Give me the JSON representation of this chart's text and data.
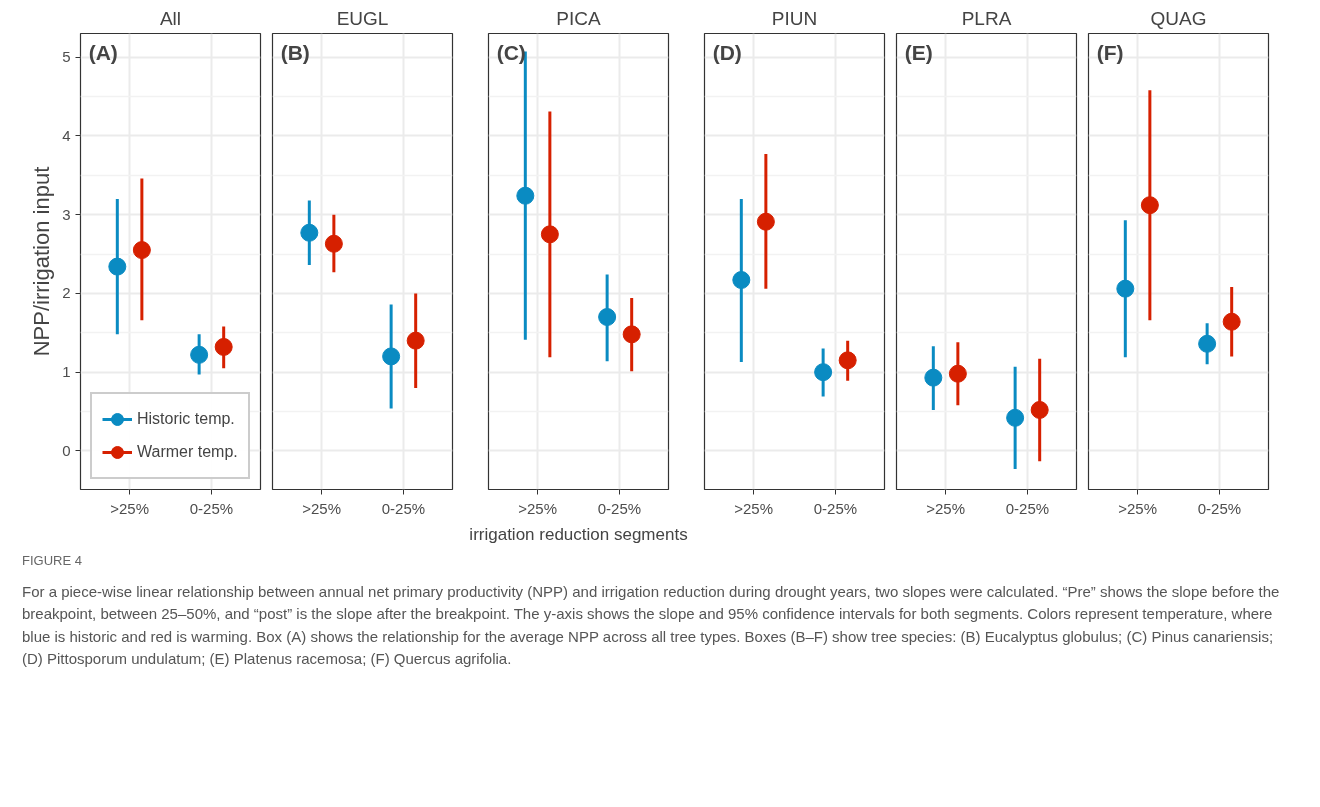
{
  "chart_data": [
    {
      "type": "scatter",
      "title": "All",
      "ylabel": "NPP/irrigation input",
      "categories": [
        ">25%",
        "0-25%"
      ],
      "ylim": [
        -0.49,
        5.3
      ],
      "yticks": [
        0,
        1,
        2,
        3,
        4,
        5
      ],
      "grid": true,
      "legend": "bottom left",
      "marker": "circle",
      "annotations": [
        "(A)",
        "FIGURE 4",
        "For a piece-wise linear relationship between annual net primary productivity (NPP) and irrigation reduction during drought years, two slopes were calculated. “Pre” shows the slope before the breakpoint, between 25–50%, and “post” is the slope after the breakpoint. The y-axis shows the slope and 95% confidence intervals for both segments. Colors represent temperature, where blue is historic and red is warming. Box (A) shows the relationship for the average NPP across all tree types. Boxes (B–F) show tree species: (B) Eucalyptus globulus; (C) Pinus canariensis; (D) Pittosporum undulatum; (E) Platenus racemosa; (F) Quercus agrifolia."
      ],
      "series": [
        {
          "name": "Historic temp.",
          "color": "#0a8bc2",
          "values": [
            2.34,
            1.22
          ],
          "errors": [
            [
              1.48,
              3.2
            ],
            [
              0.97,
              1.48
            ]
          ]
        },
        {
          "name": "Warmer temp.",
          "color": "#d62000",
          "values": [
            2.55,
            1.32
          ],
          "errors": [
            [
              1.66,
              3.46
            ],
            [
              1.05,
              1.58
            ]
          ]
        }
      ]
    },
    {
      "type": "scatter",
      "title": "EUGL",
      "categories": [
        ">25%",
        "0-25%"
      ],
      "ylim": [
        -0.49,
        5.3
      ],
      "yticks": [
        0,
        1,
        2,
        3,
        4,
        5
      ],
      "grid": true,
      "tick_labels": "x",
      "marker": "circle",
      "annotations": [
        "(B)"
      ],
      "series": [
        {
          "color": "#0a8bc2",
          "values": [
            2.77,
            1.2
          ],
          "errors": [
            [
              2.36,
              3.18
            ],
            [
              0.54,
              1.86
            ]
          ]
        },
        {
          "color": "#d62000",
          "values": [
            2.63,
            1.4
          ],
          "errors": [
            [
              2.27,
              3.0
            ],
            [
              0.8,
              2.0
            ]
          ]
        }
      ]
    },
    {
      "type": "scatter",
      "title": "PICA",
      "xlabel": "irrigation reduction segments",
      "categories": [
        ">25%",
        "0-25%"
      ],
      "ylim": [
        -0.49,
        5.3
      ],
      "yticks": [
        0,
        1,
        2,
        3,
        4,
        5
      ],
      "grid": true,
      "tick_labels": "x",
      "marker": "circle",
      "annotations": [
        "(C)"
      ],
      "series": [
        {
          "color": "#0a8bc2",
          "values": [
            3.24,
            1.7
          ],
          "errors": [
            [
              1.41,
              5.07
            ],
            [
              1.14,
              2.24
            ]
          ]
        },
        {
          "color": "#d62000",
          "values": [
            2.75,
            1.48
          ],
          "errors": [
            [
              1.19,
              4.31
            ],
            [
              1.01,
              1.94
            ]
          ]
        }
      ]
    },
    {
      "type": "scatter",
      "title": "PIUN",
      "categories": [
        ">25%",
        "0-25%"
      ],
      "ylim": [
        -0.49,
        5.3
      ],
      "yticks": [
        0,
        1,
        2,
        3,
        4,
        5
      ],
      "grid": true,
      "tick_labels": "x",
      "marker": "circle",
      "annotations": [
        "(D)"
      ],
      "series": [
        {
          "color": "#0a8bc2",
          "values": [
            2.17,
            1.0
          ],
          "errors": [
            [
              1.13,
              3.2
            ],
            [
              0.69,
              1.3
            ]
          ]
        },
        {
          "color": "#d62000",
          "values": [
            2.91,
            1.15
          ],
          "errors": [
            [
              2.06,
              3.77
            ],
            [
              0.89,
              1.4
            ]
          ]
        }
      ]
    },
    {
      "type": "scatter",
      "title": "PLRA",
      "categories": [
        ">25%",
        "0-25%"
      ],
      "ylim": [
        -0.49,
        5.3
      ],
      "yticks": [
        0,
        1,
        2,
        3,
        4,
        5
      ],
      "grid": true,
      "tick_labels": "x",
      "marker": "circle",
      "annotations": [
        "(E)"
      ],
      "series": [
        {
          "color": "#0a8bc2",
          "values": [
            0.93,
            0.42
          ],
          "errors": [
            [
              0.52,
              1.33
            ],
            [
              -0.23,
              1.07
            ]
          ]
        },
        {
          "color": "#d62000",
          "values": [
            0.98,
            0.52
          ],
          "errors": [
            [
              0.58,
              1.38
            ],
            [
              -0.13,
              1.17
            ]
          ]
        }
      ]
    },
    {
      "type": "scatter",
      "title": "QUAG",
      "categories": [
        ">25%",
        "0-25%"
      ],
      "ylim": [
        -0.49,
        5.3
      ],
      "yticks": [
        0,
        1,
        2,
        3,
        4,
        5
      ],
      "grid": true,
      "tick_labels": "x",
      "marker": "circle",
      "annotations": [
        "(F)"
      ],
      "series": [
        {
          "color": "#0a8bc2",
          "values": [
            2.06,
            1.36
          ],
          "errors": [
            [
              1.19,
              2.93
            ],
            [
              1.1,
              1.62
            ]
          ]
        },
        {
          "color": "#d62000",
          "values": [
            3.12,
            1.64
          ],
          "errors": [
            [
              1.66,
              4.58
            ],
            [
              1.2,
              2.08
            ]
          ]
        }
      ]
    }
  ]
}
